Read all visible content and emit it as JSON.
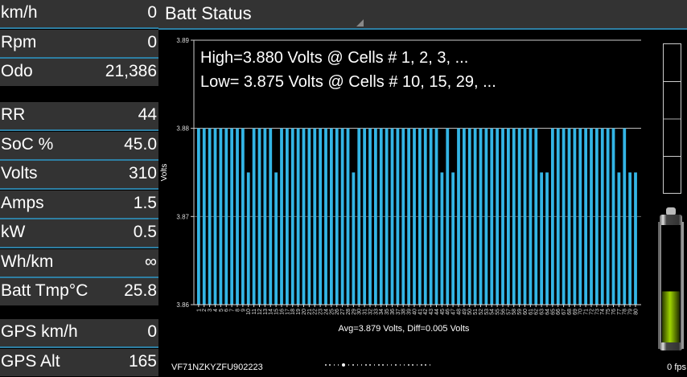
{
  "left_panel": {
    "group1": [
      {
        "label": "km/h",
        "value": "0"
      },
      {
        "label": "Rpm",
        "value": "0"
      },
      {
        "label": "Odo",
        "value": "21,386"
      }
    ],
    "group2": [
      {
        "label": "RR",
        "value": "44"
      },
      {
        "label": "SoC %",
        "value": "45.0"
      },
      {
        "label": "Volts",
        "value": "310"
      },
      {
        "label": "Amps",
        "value": "1.5"
      },
      {
        "label": "kW",
        "value": "0.5"
      },
      {
        "label": "Wh/km",
        "value": "∞"
      },
      {
        "label": "Batt Tmp°C",
        "value": "25.8"
      }
    ],
    "group3": [
      {
        "label": "GPS km/h",
        "value": "0"
      },
      {
        "label": "GPS Alt",
        "value": "165"
      }
    ]
  },
  "header": {
    "title": "Batt Status"
  },
  "stats": {
    "high": "High=3.880 Volts @ Cells # 1, 2, 3,  ...",
    "low": "Low= 3.875 Volts @ Cells # 10, 15, 29,  ..."
  },
  "footer": {
    "vin": "VF71NZKYZFU902223",
    "fps": "0 fps",
    "page_count": 25,
    "active_page": 5
  },
  "side_gauge": {
    "soc_percent": 45,
    "level_sections": 4
  },
  "colors": {
    "bar": "#33b5e5",
    "accent": "#2e7fa3",
    "panel": "#333333",
    "battery_fill": "#8fc400"
  },
  "chart_data": {
    "type": "bar",
    "title": "",
    "xlabel": "",
    "ylabel": "Volts",
    "ylim": [
      3.86,
      3.89
    ],
    "yticks": [
      "3.86",
      "3.87",
      "3.88",
      "3.89"
    ],
    "grid": true,
    "annotation": "Avg=3.879 Volts, Diff=0.005 Volts",
    "categories": [
      "1",
      "2",
      "3",
      "4",
      "5",
      "6",
      "7",
      "8",
      "9",
      "10",
      "11",
      "12",
      "13",
      "14",
      "15",
      "16",
      "17",
      "18",
      "19",
      "20",
      "21",
      "22",
      "23",
      "24",
      "25",
      "26",
      "27",
      "28",
      "29",
      "30",
      "31",
      "32",
      "33",
      "34",
      "35",
      "36",
      "37",
      "38",
      "39",
      "40",
      "41",
      "42",
      "43",
      "44",
      "45",
      "46",
      "47",
      "48",
      "49",
      "50",
      "51",
      "52",
      "53",
      "54",
      "55",
      "56",
      "57",
      "58",
      "59",
      "60",
      "61",
      "62",
      "63",
      "64",
      "65",
      "66",
      "67",
      "68",
      "69",
      "70",
      "71",
      "72",
      "73",
      "74",
      "75",
      "76",
      "77",
      "78",
      "79",
      "80"
    ],
    "values": [
      3.88,
      3.88,
      3.88,
      3.88,
      3.88,
      3.88,
      3.88,
      3.88,
      3.88,
      3.875,
      3.88,
      3.88,
      3.88,
      3.88,
      3.875,
      3.88,
      3.88,
      3.88,
      3.88,
      3.88,
      3.88,
      3.88,
      3.88,
      3.88,
      3.88,
      3.88,
      3.88,
      3.88,
      3.875,
      3.88,
      3.88,
      3.88,
      3.88,
      3.88,
      3.88,
      3.88,
      3.88,
      3.88,
      3.88,
      3.88,
      3.88,
      3.88,
      3.88,
      3.88,
      3.875,
      3.88,
      3.875,
      3.88,
      3.88,
      3.88,
      3.88,
      3.88,
      3.88,
      3.88,
      3.88,
      3.88,
      3.88,
      3.88,
      3.88,
      3.88,
      3.88,
      3.88,
      3.875,
      3.875,
      3.88,
      3.88,
      3.88,
      3.88,
      3.88,
      3.88,
      3.88,
      3.88,
      3.88,
      3.88,
      3.88,
      3.88,
      3.875,
      3.88,
      3.875,
      3.875
    ]
  }
}
